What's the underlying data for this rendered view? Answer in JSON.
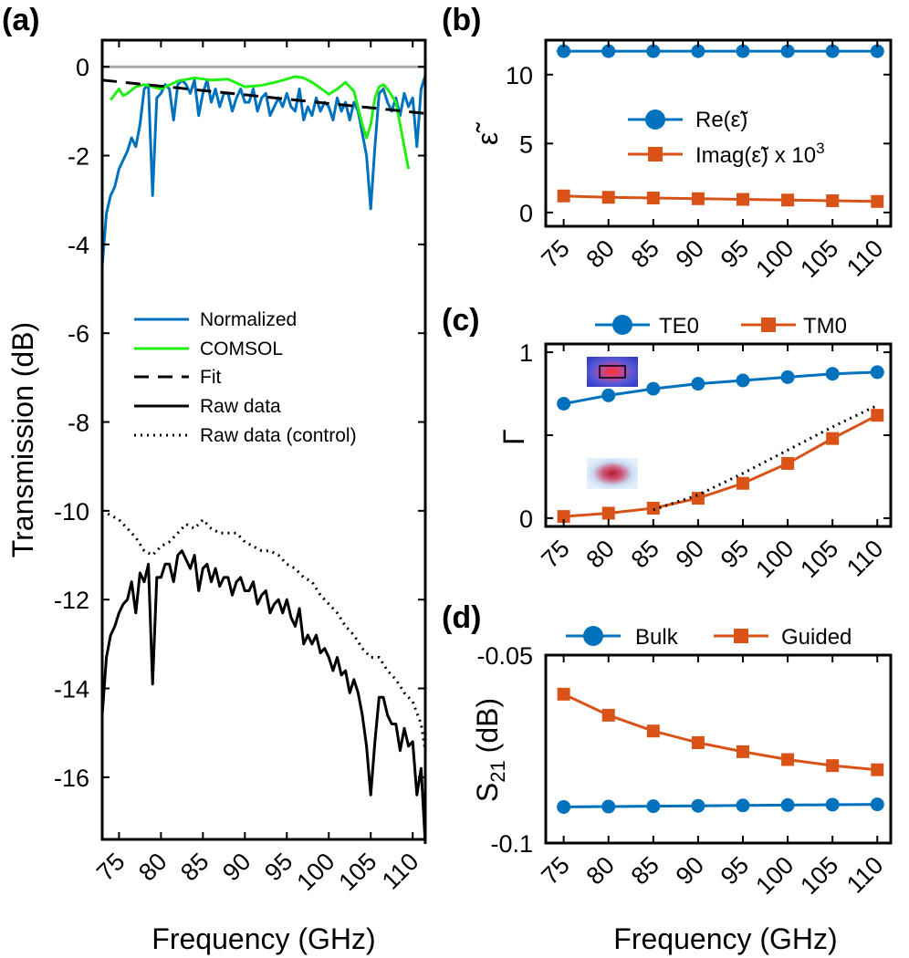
{
  "colors": {
    "blue": "#0072BD",
    "orange": "#D95319",
    "green": "#22EE11",
    "black": "#000000",
    "gray": "#AAAAAA"
  },
  "chart_data": [
    {
      "panel": "(a)",
      "type": "line",
      "xlabel": "Frequency (GHz)",
      "ylabel": "Transmission (dB)",
      "xlim": [
        73,
        111.5
      ],
      "ylim": [
        -17.4,
        0.6
      ],
      "xticks": [
        75,
        80,
        85,
        90,
        95,
        100,
        105,
        110
      ],
      "yticks": [
        0,
        -2,
        -4,
        -6,
        -8,
        -10,
        -12,
        -14,
        -16
      ],
      "xtick_labels": [
        "75",
        "80",
        "85",
        "90",
        "95",
        "100",
        "105",
        "110"
      ],
      "ytick_labels": [
        "0",
        "-2",
        "-4",
        "-6",
        "-8",
        "-10",
        "-12",
        "-14",
        "-16"
      ],
      "reference_line": 0,
      "legend": [
        "Normalized",
        "COMSOL",
        "Fit",
        "Raw data",
        "Raw data (control)"
      ],
      "series": [
        {
          "name": "Normalized",
          "style": "solid",
          "color": "blue",
          "x": [
            73,
            73.5,
            74,
            74.5,
            75,
            75.5,
            76,
            76.5,
            77,
            77.5,
            78,
            78.5,
            79,
            79.5,
            80,
            80.5,
            81,
            81.5,
            82,
            82.5,
            83,
            83.5,
            84,
            84.5,
            85,
            85.5,
            86,
            86.5,
            87,
            87.5,
            88,
            88.5,
            89,
            89.5,
            90,
            90.5,
            91,
            91.5,
            92,
            92.5,
            93,
            93.5,
            94,
            94.5,
            95,
            95.5,
            96,
            96.5,
            97,
            97.5,
            98,
            98.5,
            99,
            99.5,
            100,
            100.5,
            101,
            101.5,
            102,
            102.5,
            103,
            103.5,
            104,
            104.5,
            105,
            105.5,
            106,
            106.5,
            107,
            107.5,
            108,
            108.5,
            109,
            109.5,
            110,
            110.5,
            111,
            111.5
          ],
          "y": [
            -4.5,
            -3.3,
            -2.9,
            -2.7,
            -2.3,
            -2.1,
            -1.9,
            -1.6,
            -1.8,
            -1.3,
            -0.5,
            -0.4,
            -2.9,
            -0.7,
            -0.6,
            -0.4,
            -0.5,
            -1.2,
            -0.4,
            -0.3,
            -0.4,
            -0.6,
            -0.3,
            -1.1,
            -0.6,
            -0.3,
            -0.8,
            -0.5,
            -0.9,
            -0.6,
            -0.6,
            -1.0,
            -0.7,
            -0.5,
            -0.8,
            -0.8,
            -0.5,
            -1.0,
            -0.7,
            -0.6,
            -1.1,
            -0.9,
            -0.7,
            -0.9,
            -0.6,
            -0.9,
            -1.0,
            -0.5,
            -1.2,
            -0.9,
            -1.1,
            -0.7,
            -1.0,
            -0.8,
            -0.9,
            -1.2,
            -0.7,
            -1.0,
            -0.8,
            -1.2,
            -0.8,
            -1.0,
            -1.5,
            -2.0,
            -3.2,
            -1.8,
            -0.6,
            -0.5,
            -0.8,
            -1.0,
            -0.7,
            -1.1,
            -0.6,
            -0.9,
            -0.7,
            -1.8,
            -0.5,
            -0.2
          ]
        },
        {
          "name": "COMSOL",
          "style": "solid",
          "color": "green",
          "x": [
            74,
            75,
            75.5,
            76,
            77,
            78,
            80,
            82,
            84,
            86,
            88,
            90,
            92,
            94,
            96,
            97,
            98,
            99,
            100,
            101,
            102,
            103,
            104,
            104.5,
            105,
            105.5,
            106,
            106.5,
            107,
            108,
            109,
            109.5
          ],
          "y": [
            -0.75,
            -0.5,
            -0.65,
            -0.6,
            -0.45,
            -0.4,
            -0.5,
            -0.32,
            -0.25,
            -0.3,
            -0.28,
            -0.45,
            -0.42,
            -0.33,
            -0.22,
            -0.25,
            -0.35,
            -0.48,
            -0.62,
            -0.5,
            -0.35,
            -0.55,
            -1.3,
            -1.6,
            -1.3,
            -0.7,
            -0.45,
            -0.4,
            -0.5,
            -0.8,
            -1.8,
            -2.3
          ]
        },
        {
          "name": "Fit",
          "style": "dashed",
          "color": "black",
          "x": [
            73,
            111.5
          ],
          "y": [
            -0.3,
            -1.05
          ]
        },
        {
          "name": "Raw data",
          "style": "solid",
          "color": "black",
          "x": [
            73,
            73.5,
            74,
            74.5,
            75,
            75.5,
            76,
            76.5,
            77,
            77.5,
            78,
            78.5,
            79,
            79.5,
            80,
            80.5,
            81,
            81.5,
            82,
            82.5,
            83,
            83.5,
            84,
            84.5,
            85,
            85.5,
            86,
            86.5,
            87,
            87.5,
            88,
            88.5,
            89,
            89.5,
            90,
            90.5,
            91,
            91.5,
            92,
            92.5,
            93,
            93.5,
            94,
            94.5,
            95,
            95.5,
            96,
            96.5,
            97,
            97.5,
            98,
            98.5,
            99,
            99.5,
            100,
            100.5,
            101,
            101.5,
            102,
            102.5,
            103,
            103.5,
            104,
            104.5,
            105,
            105.5,
            106,
            106.5,
            107,
            107.5,
            108,
            108.5,
            109,
            109.5,
            110,
            110.5,
            111,
            111.5
          ],
          "y": [
            -14.6,
            -13.3,
            -12.8,
            -12.6,
            -12.3,
            -12.1,
            -12.0,
            -11.6,
            -12.3,
            -11.4,
            -11.6,
            -11.2,
            -13.9,
            -11.5,
            -11.5,
            -11.2,
            -11.2,
            -11.6,
            -11.0,
            -10.9,
            -11.1,
            -11.3,
            -11.0,
            -11.8,
            -11.3,
            -11.2,
            -11.6,
            -11.3,
            -11.7,
            -11.5,
            -11.5,
            -11.9,
            -11.6,
            -11.5,
            -11.8,
            -11.8,
            -11.6,
            -12.1,
            -11.9,
            -11.8,
            -12.3,
            -12.1,
            -12.0,
            -12.3,
            -12.0,
            -12.4,
            -12.6,
            -12.2,
            -13.0,
            -12.8,
            -13.0,
            -12.8,
            -13.2,
            -13.1,
            -13.3,
            -13.6,
            -13.3,
            -13.7,
            -13.6,
            -14.1,
            -13.8,
            -14.1,
            -14.6,
            -15.3,
            -16.4,
            -15.2,
            -14.2,
            -14.2,
            -14.6,
            -14.8,
            -14.8,
            -15.4,
            -14.9,
            -15.3,
            -15.2,
            -16.4,
            -15.8,
            -17.5
          ]
        },
        {
          "name": "Raw data (control)",
          "style": "dotted",
          "color": "black",
          "x": [
            73,
            74,
            75,
            76,
            77,
            78,
            79,
            80,
            81,
            82,
            83,
            84,
            85,
            86,
            87,
            88,
            89,
            90,
            91,
            92,
            93,
            94,
            95,
            96,
            97,
            98,
            99,
            100,
            101,
            102,
            103,
            104,
            105,
            106,
            107,
            108,
            109,
            110,
            111,
            111.5
          ],
          "y": [
            -10.0,
            -10.1,
            -10.2,
            -10.4,
            -10.6,
            -10.9,
            -11.0,
            -10.8,
            -10.7,
            -10.5,
            -10.3,
            -10.4,
            -10.2,
            -10.4,
            -10.5,
            -10.5,
            -10.5,
            -10.7,
            -10.8,
            -10.9,
            -10.9,
            -11.0,
            -11.2,
            -11.3,
            -11.5,
            -11.6,
            -11.9,
            -12.1,
            -12.3,
            -12.6,
            -12.8,
            -13.1,
            -13.3,
            -13.3,
            -13.6,
            -13.8,
            -14.1,
            -14.3,
            -14.8,
            -15.4
          ]
        }
      ]
    },
    {
      "panel": "(b)",
      "type": "line",
      "ylabel": "ε̃",
      "xlim": [
        73,
        111.5
      ],
      "ylim": [
        -1,
        12.5
      ],
      "xticks": [
        75,
        80,
        85,
        90,
        95,
        100,
        105,
        110
      ],
      "yticks": [
        0,
        5,
        10
      ],
      "xtick_labels": [
        "75",
        "80",
        "85",
        "90",
        "95",
        "100",
        "105",
        "110"
      ],
      "ytick_labels": [
        "0",
        "5",
        "10"
      ],
      "legend": [
        "Re(ε̃)",
        "Imag(ε̃) x 10",
        "3"
      ],
      "series": [
        {
          "name": "Re(ε̃)",
          "marker": "circle",
          "color": "blue",
          "x": [
            75,
            80,
            85,
            90,
            95,
            100,
            105,
            110
          ],
          "y": [
            11.7,
            11.7,
            11.7,
            11.7,
            11.7,
            11.7,
            11.7,
            11.7
          ]
        },
        {
          "name": "Imag(ε̃) x 10^3",
          "marker": "square",
          "color": "orange",
          "x": [
            75,
            80,
            85,
            90,
            95,
            100,
            105,
            110
          ],
          "y": [
            1.2,
            1.1,
            1.05,
            1.0,
            0.95,
            0.9,
            0.85,
            0.8
          ]
        }
      ]
    },
    {
      "panel": "(c)",
      "type": "line",
      "ylabel": "Γ",
      "xlim": [
        73,
        111.5
      ],
      "ylim": [
        -0.05,
        1.05
      ],
      "xticks": [
        75,
        80,
        85,
        90,
        95,
        100,
        105,
        110
      ],
      "yticks": [
        0,
        0.5,
        1
      ],
      "xtick_labels": [
        "75",
        "80",
        "85",
        "90",
        "95",
        "100",
        "105",
        "110"
      ],
      "ytick_labels": [
        "0",
        "",
        "1"
      ],
      "legend": [
        "TE0",
        "TM0"
      ],
      "series": [
        {
          "name": "TE0",
          "marker": "circle",
          "color": "blue",
          "x": [
            75,
            80,
            85,
            90,
            95,
            100,
            105,
            110
          ],
          "y": [
            0.69,
            0.74,
            0.78,
            0.81,
            0.83,
            0.85,
            0.87,
            0.88
          ]
        },
        {
          "name": "TM0",
          "marker": "square",
          "color": "orange",
          "x": [
            75,
            80,
            85,
            90,
            95,
            100,
            105,
            110
          ],
          "y": [
            0.01,
            0.03,
            0.06,
            0.12,
            0.21,
            0.33,
            0.48,
            0.62
          ]
        },
        {
          "name": "TM0 (dotted reference)",
          "style": "dotted",
          "color": "black",
          "x": [
            85,
            90,
            95,
            100,
            105,
            110
          ],
          "y": [
            0.05,
            0.14,
            0.27,
            0.41,
            0.55,
            0.68
          ]
        }
      ]
    },
    {
      "panel": "(d)",
      "type": "line",
      "xlabel": "Frequency (GHz)",
      "ylabel": "S",
      "ylabel_sub": "21",
      "ylabel_suffix": "(dB)",
      "xlim": [
        73,
        111.5
      ],
      "ylim": [
        -0.1,
        -0.05
      ],
      "xticks": [
        75,
        80,
        85,
        90,
        95,
        100,
        105,
        110
      ],
      "yticks": [
        -0.05,
        -0.1
      ],
      "xtick_labels": [
        "75",
        "80",
        "85",
        "90",
        "95",
        "100",
        "105",
        "110"
      ],
      "ytick_labels": [
        "-0.05",
        "-0.1"
      ],
      "legend": [
        "Bulk",
        "Guided"
      ],
      "series": [
        {
          "name": "Bulk",
          "marker": "circle",
          "color": "blue",
          "x": [
            75,
            80,
            85,
            90,
            95,
            100,
            105,
            110
          ],
          "y": [
            -0.0904,
            -0.0903,
            -0.0902,
            -0.0901,
            -0.09,
            -0.0899,
            -0.0898,
            -0.0897
          ]
        },
        {
          "name": "Guided",
          "marker": "square",
          "color": "orange",
          "x": [
            75,
            80,
            85,
            90,
            95,
            100,
            105,
            110
          ],
          "y": [
            -0.0604,
            -0.066,
            -0.0702,
            -0.0733,
            -0.0757,
            -0.0778,
            -0.0794,
            -0.0805
          ]
        }
      ]
    }
  ]
}
